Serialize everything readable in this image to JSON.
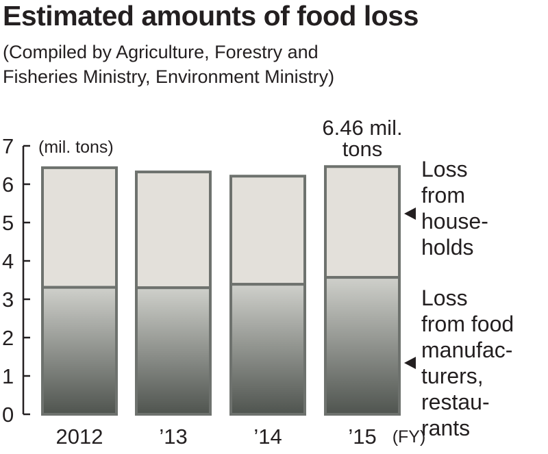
{
  "title": "Estimated amounts of food loss",
  "subtitle_line1": "(Compiled by Agriculture, Forestry and",
  "subtitle_line2": "Fisheries Ministry, Environment Ministry)",
  "colors": {
    "household": "#e3e0da",
    "business_top": "#cfd0cb",
    "business_bottom": "#4f544f",
    "outline": "#6e726e"
  },
  "chart_data": {
    "type": "bar",
    "stacked": true,
    "title": "Estimated amounts of food loss",
    "ylabel": "(mil. tons)",
    "ylim": [
      0,
      7
    ],
    "yticks": [
      "0",
      "1",
      "2",
      "3",
      "4",
      "5",
      "6",
      "7"
    ],
    "categories": [
      "2012",
      "’13",
      "’14",
      "’15"
    ],
    "x_suffix": "(FY)",
    "series": [
      {
        "name": "Loss from food manufacturers, restaurants",
        "values": [
          3.31,
          3.3,
          3.39,
          3.57
        ]
      },
      {
        "name": "Loss from households",
        "values": [
          3.12,
          3.02,
          2.82,
          2.89
        ]
      }
    ],
    "annotation_line1": "6.46 mil.",
    "annotation_line2": "tons",
    "legend": {
      "households": [
        "Loss",
        "from",
        "house-",
        "holds"
      ],
      "business": [
        "Loss",
        "from food",
        "manufac-",
        "turers,",
        "restau-",
        "rants"
      ]
    },
    "legend_placement": "right"
  }
}
